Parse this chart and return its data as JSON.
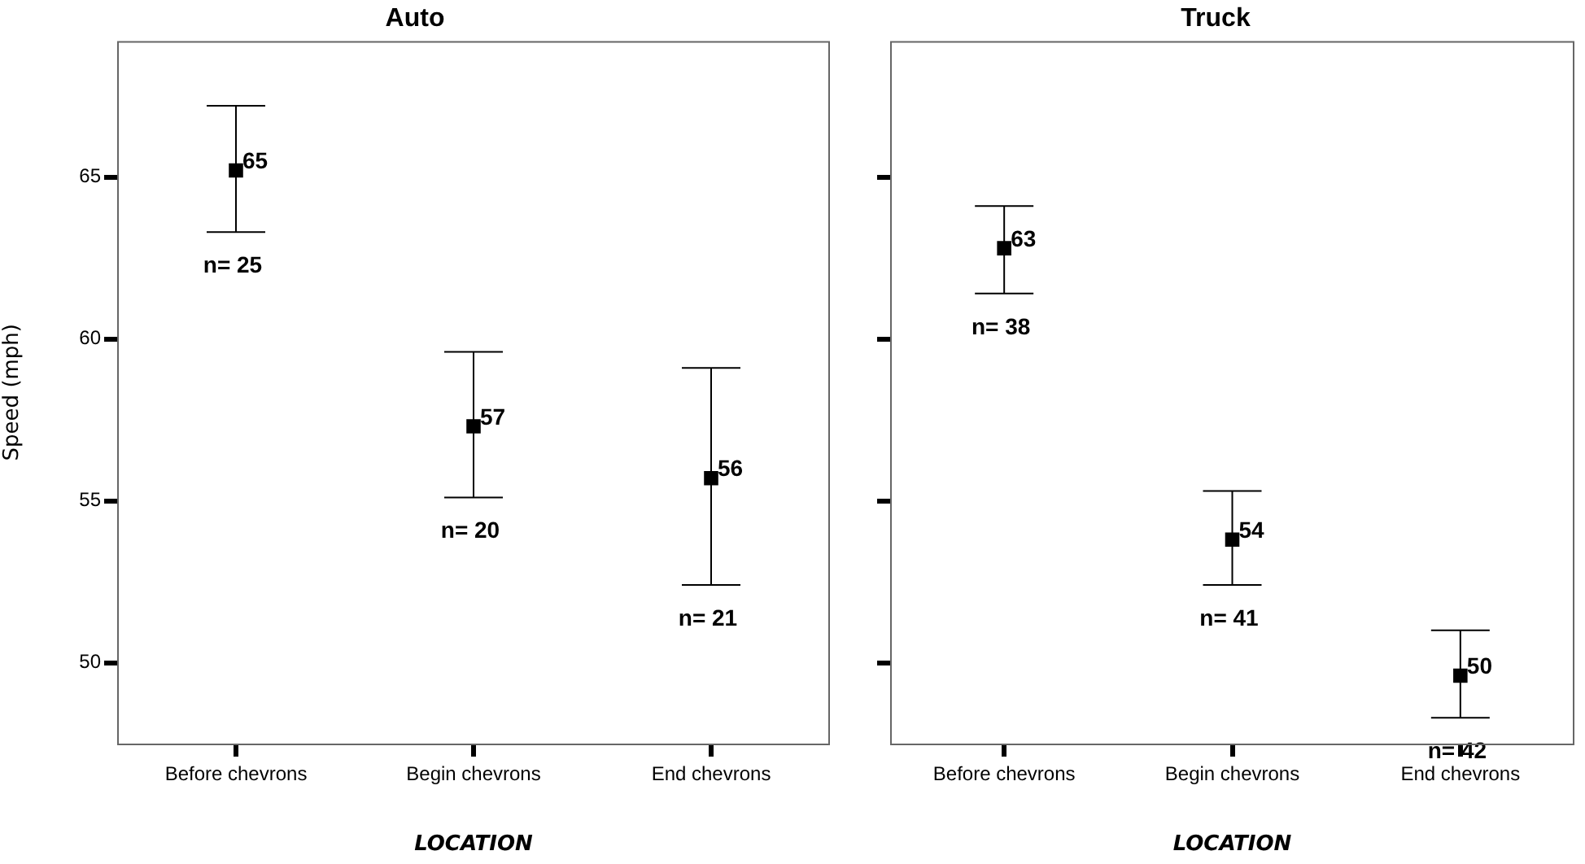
{
  "chart_data": [
    {
      "type": "scatter",
      "title": "Auto",
      "xlabel": "LOCATION",
      "ylabel": "Speed (mph)",
      "categories": [
        "Before chevrons",
        "Begin chevrons",
        "End chevrons"
      ],
      "series": [
        {
          "color": "#000000",
          "values": [
            65.2,
            57.3,
            55.7
          ],
          "errors": [
            [
              63.3,
              67.2
            ],
            [
              55.1,
              59.6
            ],
            [
              52.4,
              59.1
            ]
          ],
          "value_labels": [
            "65",
            "57",
            "56"
          ]
        }
      ],
      "annotations": [
        "n= 25",
        "n= 20",
        "n= 21"
      ],
      "ylim": [
        47.5,
        69.2
      ],
      "yticks": [
        50,
        55,
        60,
        65
      ],
      "marker": "square",
      "grid": false,
      "legend": false
    },
    {
      "type": "scatter",
      "title": "Truck",
      "xlabel": "LOCATION",
      "categories": [
        "Before chevrons",
        "Begin chevrons",
        "End chevrons"
      ],
      "series": [
        {
          "color": "#000000",
          "values": [
            62.8,
            53.8,
            49.6
          ],
          "errors": [
            [
              61.4,
              64.1
            ],
            [
              52.4,
              55.3
            ],
            [
              48.3,
              51.0
            ]
          ],
          "value_labels": [
            "63",
            "54",
            "50"
          ]
        }
      ],
      "annotations": [
        "n= 38",
        "n= 41",
        "n= 42"
      ],
      "ylim": [
        47.5,
        69.2
      ],
      "yticks": [
        50,
        55,
        60,
        65
      ],
      "tick_labels": "x",
      "marker": "square",
      "grid": false,
      "legend": false
    }
  ]
}
